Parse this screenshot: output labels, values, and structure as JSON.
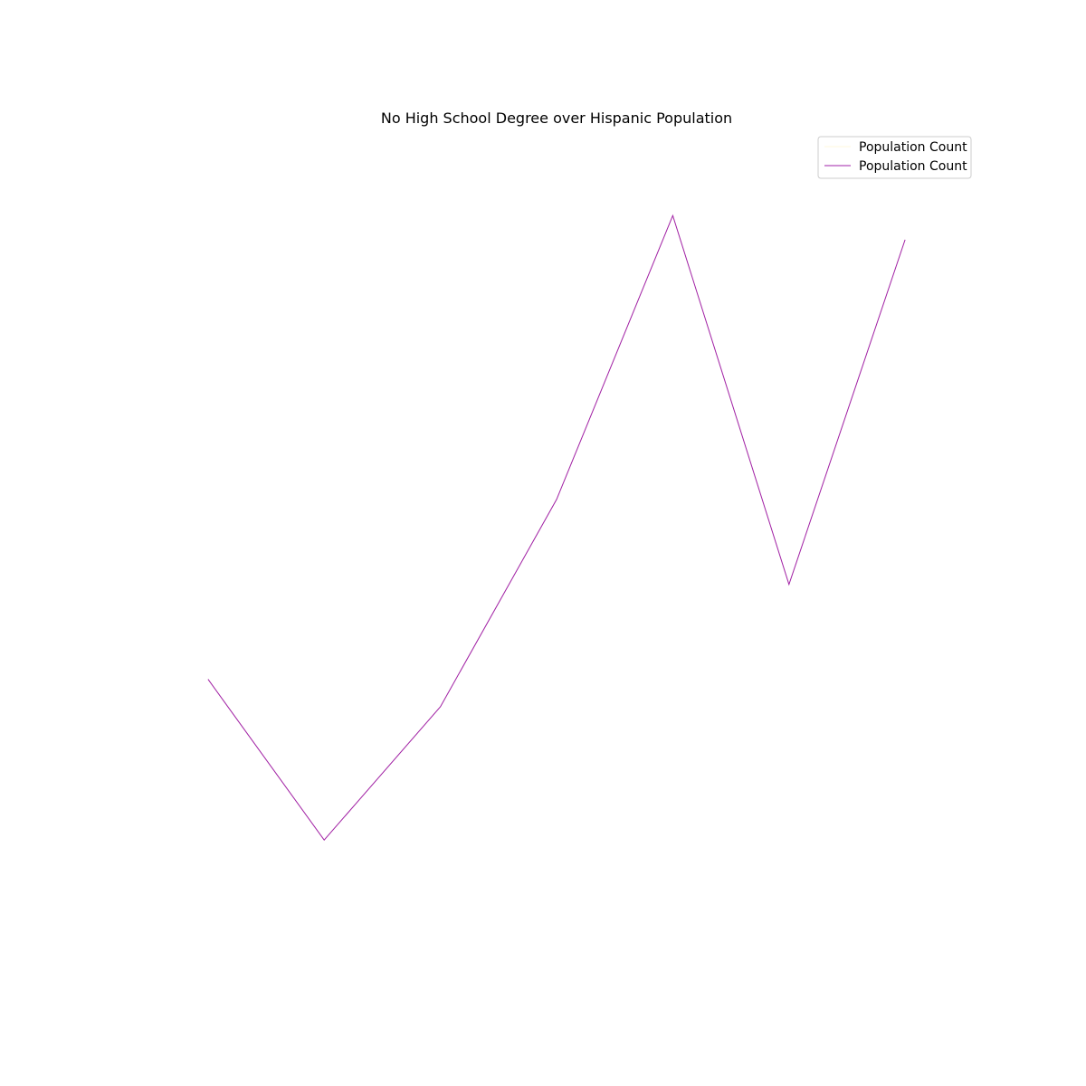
{
  "chart_data": {
    "type": "line",
    "title": "No High School Degree over Hispanic Population",
    "xlabel": "",
    "ylabel": "",
    "axes_visible": false,
    "grid": false,
    "legend_position": "top-right",
    "x": [
      1,
      2,
      3,
      4,
      5,
      6,
      7
    ],
    "xlim": [
      0.3,
      7.7
    ],
    "ylim": [
      0,
      100
    ],
    "series": [
      {
        "name": "Population Count",
        "color": "#fff8dc",
        "values": [
          35.8,
          16.5,
          32.5,
          57.4,
          91.5,
          47.2,
          88.6
        ]
      },
      {
        "name": "Population Count",
        "color": "#a020a8",
        "values": [
          35.8,
          16.5,
          32.5,
          57.4,
          91.5,
          47.2,
          88.6
        ]
      }
    ]
  }
}
